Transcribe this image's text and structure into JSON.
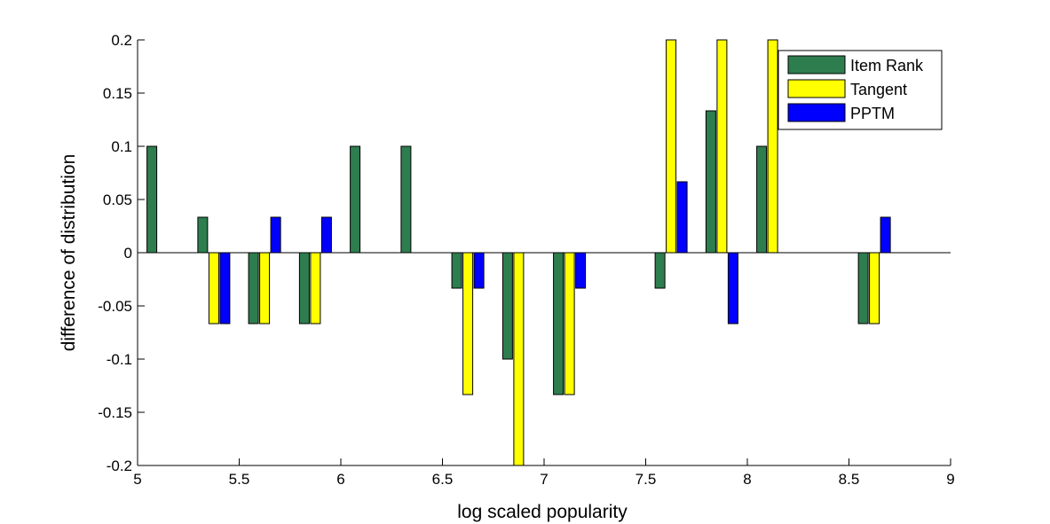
{
  "chart_data": {
    "type": "bar",
    "title": "",
    "xlabel": "log scaled popularity",
    "ylabel": "difference of distribution",
    "xlim": [
      5,
      9
    ],
    "ylim": [
      -0.2,
      0.2
    ],
    "xticks": [
      "5",
      "5.5",
      "6",
      "6.5",
      "7",
      "7.5",
      "8",
      "8.5",
      "9"
    ],
    "yticks": [
      "-0.2",
      "-0.15",
      "-0.1",
      "-0.05",
      "0",
      "0.05",
      "0.1",
      "0.15",
      "0.2"
    ],
    "xtick_values": [
      5,
      5.5,
      6,
      6.5,
      7,
      7.5,
      8,
      8.5,
      9
    ],
    "ytick_values": [
      -0.2,
      -0.15,
      -0.1,
      -0.05,
      0,
      0.05,
      0.1,
      0.15,
      0.2
    ],
    "grid": false,
    "legend_position": "top-right",
    "x": [
      5.125,
      5.375,
      5.625,
      5.875,
      6.125,
      6.375,
      6.625,
      6.875,
      7.125,
      7.375,
      7.625,
      7.875,
      8.125,
      8.375,
      8.625
    ],
    "series": [
      {
        "name": "Item Rank",
        "color": "#2e7d4f",
        "values": [
          0.1,
          0.0333,
          -0.0667,
          -0.0667,
          0.1,
          0.1,
          -0.0333,
          -0.1,
          -0.1333,
          0,
          -0.0333,
          0.1333,
          0.1,
          0,
          -0.0667
        ]
      },
      {
        "name": "Tangent",
        "color": "#ffff00",
        "values": [
          0,
          -0.0667,
          -0.0667,
          -0.0667,
          0,
          0,
          -0.1333,
          -0.2,
          -0.1333,
          0,
          0.2,
          0.2,
          0.2,
          0,
          -0.0667
        ]
      },
      {
        "name": "PPTM",
        "color": "#0000ff",
        "values": [
          0,
          -0.0667,
          0.0333,
          0.0333,
          0,
          0,
          -0.0333,
          0,
          -0.0333,
          0,
          0.0667,
          -0.0667,
          0,
          0,
          0.0333
        ]
      }
    ]
  }
}
